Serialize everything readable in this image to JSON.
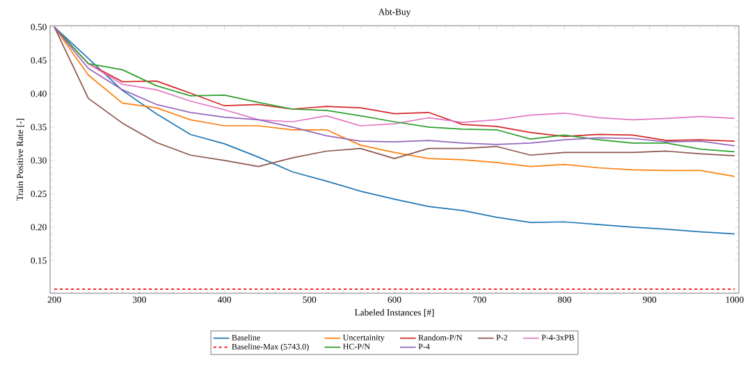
{
  "chart_data": {
    "type": "line",
    "title": "Abt-Buy",
    "xlabel": "Labeled Instances [#]",
    "ylabel": "Train Positive Rate [-]",
    "x": [
      200,
      240,
      280,
      320,
      360,
      400,
      440,
      480,
      520,
      560,
      600,
      640,
      680,
      720,
      760,
      800,
      840,
      880,
      920,
      960,
      1000
    ],
    "series": [
      {
        "name": "Baseline",
        "color": "#1f77b4",
        "values": [
          0.5,
          0.453,
          0.405,
          0.37,
          0.339,
          0.325,
          0.305,
          0.283,
          0.269,
          0.254,
          0.242,
          0.231,
          0.225,
          0.215,
          0.207,
          0.208,
          0.204,
          0.2,
          0.197,
          0.193,
          0.19
        ]
      },
      {
        "name": "Uncertainity",
        "color": "#ff7f0e",
        "values": [
          0.5,
          0.428,
          0.386,
          0.379,
          0.361,
          0.352,
          0.352,
          0.346,
          0.346,
          0.323,
          0.312,
          0.303,
          0.301,
          0.297,
          0.291,
          0.294,
          0.289,
          0.286,
          0.285,
          0.285,
          0.276
        ]
      },
      {
        "name": "Random-P/N",
        "color": "#d62728",
        "values": [
          0.5,
          0.445,
          0.418,
          0.419,
          0.401,
          0.382,
          0.384,
          0.377,
          0.381,
          0.379,
          0.37,
          0.372,
          0.354,
          0.351,
          0.342,
          0.336,
          0.339,
          0.338,
          0.33,
          0.331,
          0.329
        ]
      },
      {
        "name": "P-2",
        "color": "#8c564b",
        "values": [
          0.5,
          0.393,
          0.356,
          0.327,
          0.308,
          0.3,
          0.291,
          0.304,
          0.314,
          0.318,
          0.303,
          0.318,
          0.318,
          0.321,
          0.308,
          0.312,
          0.312,
          0.312,
          0.314,
          0.31,
          0.307
        ]
      },
      {
        "name": "P-4-3xPB",
        "color": "#e377c2",
        "values": [
          0.5,
          0.445,
          0.414,
          0.406,
          0.389,
          0.376,
          0.361,
          0.358,
          0.367,
          0.352,
          0.355,
          0.364,
          0.357,
          0.361,
          0.368,
          0.371,
          0.364,
          0.361,
          0.363,
          0.366,
          0.363
        ]
      },
      {
        "name": "Baseline-Max (5743.0)",
        "color": "#ff0000",
        "line_style": "dashed",
        "values": [
          0.107,
          0.107,
          0.107,
          0.107,
          0.107,
          0.107,
          0.107,
          0.107,
          0.107,
          0.107,
          0.107,
          0.107,
          0.107,
          0.107,
          0.107,
          0.107,
          0.107,
          0.107,
          0.107,
          0.107,
          0.107
        ]
      },
      {
        "name": "HC-P/N",
        "color": "#2ca02c",
        "values": [
          0.5,
          0.445,
          0.436,
          0.412,
          0.397,
          0.398,
          0.387,
          0.377,
          0.375,
          0.367,
          0.358,
          0.35,
          0.347,
          0.346,
          0.332,
          0.338,
          0.331,
          0.326,
          0.326,
          0.317,
          0.313
        ]
      },
      {
        "name": "P-4",
        "color": "#9467bd",
        "values": [
          0.5,
          0.438,
          0.406,
          0.384,
          0.372,
          0.365,
          0.361,
          0.35,
          0.337,
          0.329,
          0.328,
          0.33,
          0.326,
          0.324,
          0.326,
          0.331,
          0.334,
          0.333,
          0.328,
          0.329,
          0.322
        ]
      }
    ],
    "xlim": [
      195,
      1005
    ],
    "ylim": [
      0.101,
      0.502
    ],
    "xticks": [
      200,
      300,
      400,
      500,
      600,
      700,
      800,
      900,
      1000
    ],
    "yticks": [
      {
        "value": 0.15,
        "label": "0.15"
      },
      {
        "value": 0.2,
        "label": "0.20"
      },
      {
        "value": 0.25,
        "label": "0.25"
      },
      {
        "value": 0.3,
        "label": "0.30"
      },
      {
        "value": 0.35,
        "label": "0.35"
      },
      {
        "value": 0.4,
        "label": "0.40"
      },
      {
        "value": 0.45,
        "label": "0.45"
      },
      {
        "value": 0.5,
        "label": "0.50"
      }
    ],
    "legend": "bottom"
  }
}
